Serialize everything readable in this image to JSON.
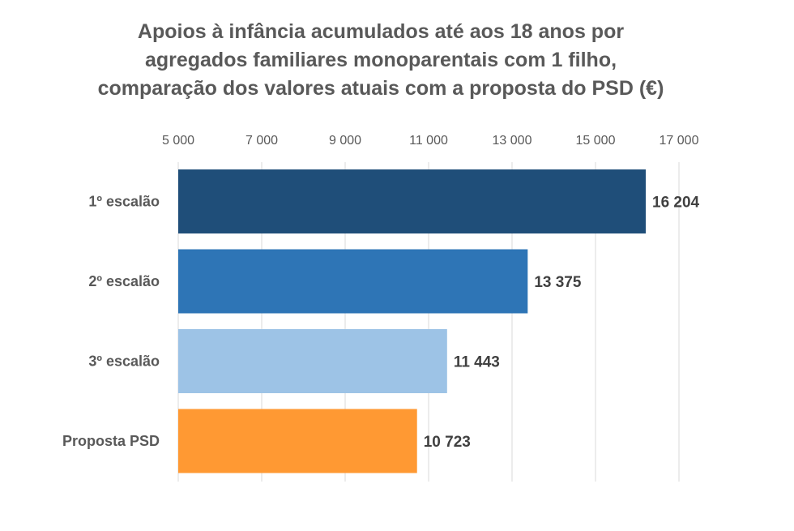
{
  "chart_data": {
    "type": "bar",
    "orientation": "horizontal",
    "title_lines": [
      "Apoios à infância acumulados até aos 18 anos por",
      "agregados familiares monoparentais com 1 filho,",
      "comparação dos valores atuais com a proposta do PSD (€)"
    ],
    "categories": [
      "1º escalão",
      "2º escalão",
      "3º escalão",
      "Proposta PSD"
    ],
    "values": [
      16204,
      13375,
      11443,
      10723
    ],
    "data_labels": [
      "16 204",
      "13 375",
      "11 443",
      "10 723"
    ],
    "colors": [
      "#1F4E79",
      "#2E75B6",
      "#9DC3E6",
      "#FF9933"
    ],
    "xlim": [
      5000,
      17000
    ],
    "x_ticks": [
      5000,
      7000,
      9000,
      11000,
      13000,
      15000,
      17000
    ],
    "x_tick_labels": [
      "5 000",
      "7 000",
      "9 000",
      "11 000",
      "13 000",
      "15 000",
      "17 000"
    ],
    "axis_position": "top",
    "grid": true,
    "legend": "none"
  }
}
